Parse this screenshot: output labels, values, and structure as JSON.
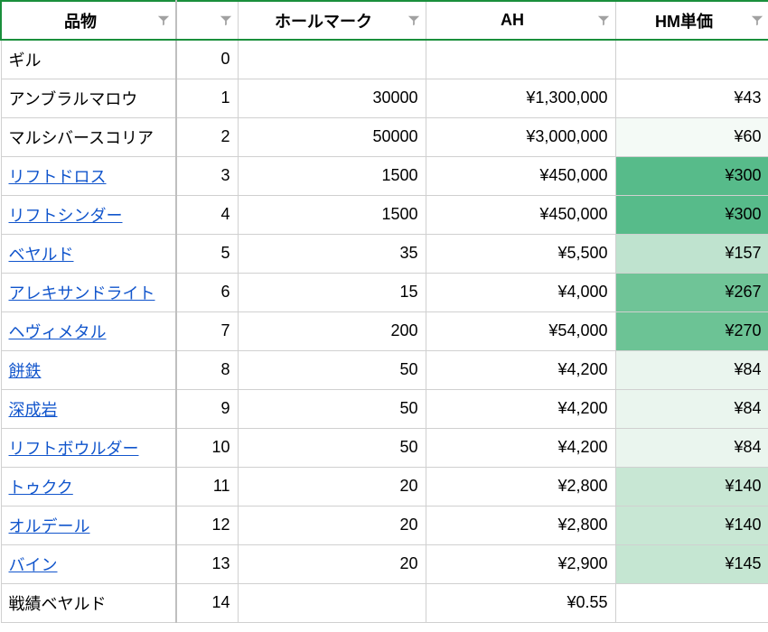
{
  "headers": {
    "item": "品物",
    "index": "",
    "hallmark": "ホールマーク",
    "ah": "AH",
    "unit": "HM単価"
  },
  "heat_scale": {
    "min_color": "#ffffff",
    "mid_color": "#d9ead3",
    "max_color": "#57bb8a",
    "link_color": "#1155cc",
    "border_color": "#d0d0d0",
    "accent_border": "#1a8f3c"
  },
  "rows": [
    {
      "item": "ギル",
      "link": false,
      "index": "0",
      "hallmark": "",
      "ah": "",
      "unit": "",
      "unit_bg": "#ffffff"
    },
    {
      "item": "アンブラルマロウ",
      "link": false,
      "index": "1",
      "hallmark": "30000",
      "ah": "¥1,300,000",
      "unit": "¥43",
      "unit_bg": "#ffffff"
    },
    {
      "item": "マルシバースコリア",
      "link": false,
      "index": "2",
      "hallmark": "50000",
      "ah": "¥3,000,000",
      "unit": "¥60",
      "unit_bg": "#f4faf6"
    },
    {
      "item": "リフトドロス",
      "link": true,
      "index": "3",
      "hallmark": "1500",
      "ah": "¥450,000",
      "unit": "¥300",
      "unit_bg": "#57bb8a"
    },
    {
      "item": "リフトシンダー",
      "link": true,
      "index": "4",
      "hallmark": "1500",
      "ah": "¥450,000",
      "unit": "¥300",
      "unit_bg": "#57bb8a"
    },
    {
      "item": "ベヤルド",
      "link": true,
      "index": "5",
      "hallmark": "35",
      "ah": "¥5,500",
      "unit": "¥157",
      "unit_bg": "#bfe3cf"
    },
    {
      "item": "アレキサンドライト",
      "link": true,
      "index": "6",
      "hallmark": "15",
      "ah": "¥4,000",
      "unit": "¥267",
      "unit_bg": "#6fc497"
    },
    {
      "item": "ヘヴィメタル",
      "link": true,
      "index": "7",
      "hallmark": "200",
      "ah": "¥54,000",
      "unit": "¥270",
      "unit_bg": "#6cc395"
    },
    {
      "item": "餅鉄",
      "link": true,
      "index": "8",
      "hallmark": "50",
      "ah": "¥4,200",
      "unit": "¥84",
      "unit_bg": "#eaf5ee"
    },
    {
      "item": "深成岩",
      "link": true,
      "index": "9",
      "hallmark": "50",
      "ah": "¥4,200",
      "unit": "¥84",
      "unit_bg": "#eaf5ee"
    },
    {
      "item": "リフトボウルダー",
      "link": true,
      "index": "10",
      "hallmark": "50",
      "ah": "¥4,200",
      "unit": "¥84",
      "unit_bg": "#eaf5ee"
    },
    {
      "item": "トゥクク",
      "link": true,
      "index": "11",
      "hallmark": "20",
      "ah": "¥2,800",
      "unit": "¥140",
      "unit_bg": "#c8e7d4"
    },
    {
      "item": "オルデール",
      "link": true,
      "index": "12",
      "hallmark": "20",
      "ah": "¥2,800",
      "unit": "¥140",
      "unit_bg": "#c8e7d4"
    },
    {
      "item": "バイン",
      "link": true,
      "index": "13",
      "hallmark": "20",
      "ah": "¥2,900",
      "unit": "¥145",
      "unit_bg": "#c5e6d2"
    },
    {
      "item": "戦績ベヤルド",
      "link": false,
      "index": "14",
      "hallmark": "",
      "ah": "¥0.55",
      "unit": "",
      "unit_bg": "#ffffff"
    }
  ]
}
